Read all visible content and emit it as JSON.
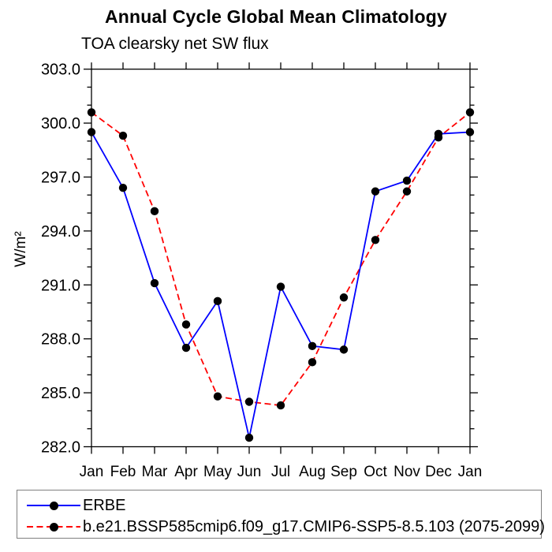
{
  "chart_data": {
    "type": "line",
    "title": "Annual Cycle Global Mean Climatology",
    "subtitle": "TOA clearsky net SW flux",
    "ylabel": "W/m²",
    "x_categories": [
      "Jan",
      "Feb",
      "Mar",
      "Apr",
      "May",
      "Jun",
      "Jul",
      "Aug",
      "Sep",
      "Oct",
      "Nov",
      "Dec",
      "Jan"
    ],
    "ylim": [
      282.0,
      303.0
    ],
    "y_major_step": 3.0,
    "y_minor_step": 1.0,
    "y_tick_labels": [
      "282.0",
      "285.0",
      "288.0",
      "291.0",
      "294.0",
      "297.0",
      "300.0",
      "303.0"
    ],
    "grid": false,
    "legend_position": "bottom-left",
    "axis_color": "#000000",
    "marker_color": "#000000",
    "series": [
      {
        "name": "ERBE",
        "color": "#0000ff",
        "line_style": "solid",
        "marker": "circle",
        "values": [
          299.5,
          296.4,
          291.1,
          287.5,
          290.1,
          282.5,
          290.9,
          287.6,
          287.4,
          296.2,
          296.8,
          299.4,
          299.5
        ]
      },
      {
        "name": "b.e21.BSSP585cmip6.f09_g17.CMIP6-SSP5-8.5.103 (2075-2099)",
        "color": "#ff0000",
        "line_style": "dashed",
        "marker": "circle",
        "values": [
          300.6,
          299.3,
          295.1,
          288.8,
          284.8,
          284.5,
          284.3,
          286.7,
          290.3,
          293.5,
          296.2,
          299.2,
          300.6
        ]
      }
    ]
  }
}
